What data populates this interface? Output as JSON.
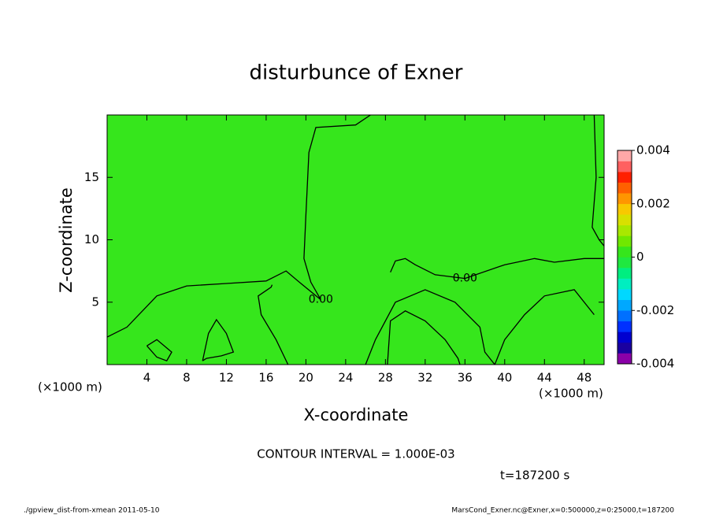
{
  "chart_data": {
    "type": "contour",
    "title": "disturbunce of Exner",
    "xlabel": "X-coordinate",
    "ylabel": "Z-coordinate",
    "x_unit": "(×1000 m)",
    "xlim": [
      0,
      50
    ],
    "ylim": [
      0,
      20
    ],
    "xticks": [
      4,
      8,
      12,
      16,
      20,
      24,
      28,
      32,
      36,
      40,
      44,
      48
    ],
    "yticks": [
      5,
      10,
      15
    ],
    "fill_color": "#36e61c",
    "contours": [
      {
        "level": 0,
        "label": "0.00",
        "x": [
          0,
          2,
          5,
          8,
          12,
          16,
          18,
          19.5,
          21.5,
          20.5,
          19.8,
          20,
          20.3,
          21,
          25,
          26.5
        ],
        "y": [
          2.2,
          3,
          5.5,
          6.3,
          6.5,
          6.7,
          7.5,
          6.5,
          5.2,
          6.6,
          8.5,
          12,
          17,
          19,
          19.2,
          20
        ]
      },
      {
        "level": 0,
        "x": [
          49,
          49.2,
          48.8,
          49.5,
          50
        ],
        "y": [
          20,
          15,
          11,
          10,
          9.5
        ]
      },
      {
        "level": 0,
        "label": "0.00",
        "x": [
          50,
          48,
          45,
          43,
          40,
          36,
          33,
          31,
          30,
          29,
          28.5
        ],
        "y": [
          8.5,
          8.5,
          8.2,
          8.5,
          8,
          6.9,
          7.2,
          8,
          8.5,
          8.3,
          7.4
        ]
      },
      {
        "level": 0,
        "x": [
          9.6,
          10.2,
          11,
          12,
          12.7,
          11.5,
          10,
          9.6
        ],
        "y": [
          0.3,
          2.5,
          3.6,
          2.5,
          1,
          0.7,
          0.5,
          0.3
        ]
      },
      {
        "level": 0,
        "x": [
          4,
          5,
          6.5,
          6,
          5,
          4
        ],
        "y": [
          1.5,
          2,
          1,
          0.3,
          0.6,
          1.5
        ]
      },
      {
        "level": 0,
        "x": [
          18.2,
          17,
          15.5,
          15.2,
          16.5,
          16.6
        ],
        "y": [
          0,
          2,
          4,
          5.5,
          6.2,
          6.4
        ]
      },
      {
        "level": 0,
        "x": [
          28.2,
          28.5,
          30,
          32,
          34,
          35.3,
          35.5
        ],
        "y": [
          0,
          3.5,
          4.3,
          3.5,
          2,
          0.5,
          0
        ]
      },
      {
        "level": 0,
        "x": [
          26,
          27,
          29,
          32,
          35,
          37.5,
          38,
          39
        ],
        "y": [
          0,
          2,
          5,
          6,
          5,
          3,
          1,
          0
        ]
      },
      {
        "level": 0,
        "x": [
          39,
          40,
          42,
          44,
          47,
          49
        ],
        "y": [
          0,
          2,
          4,
          5.5,
          6,
          4
        ]
      }
    ],
    "colorbar": {
      "lim": [
        -0.004,
        0.004
      ],
      "ticks": [
        -0.004,
        -0.002,
        0,
        0.002,
        0.004
      ],
      "colors": [
        "#8a00a8",
        "#1a00a0",
        "#0000d0",
        "#0030ff",
        "#0070ff",
        "#00a8ff",
        "#00d8ff",
        "#00eec0",
        "#00ee80",
        "#20e840",
        "#36e61c",
        "#70e800",
        "#a8e800",
        "#d8e000",
        "#f8c800",
        "#ff9600",
        "#ff6000",
        "#ff2000",
        "#ff6060",
        "#ffa8a8"
      ]
    },
    "annotation": "CONTOUR INTERVAL = 1.000E-03",
    "time_label": "t=187200 s",
    "footer_left": "./gpview_dist-from-xmean  2011-05-10",
    "footer_right": "MarsCond_Exner.nc@Exner,x=0:500000,z=0:25000,t=187200"
  }
}
